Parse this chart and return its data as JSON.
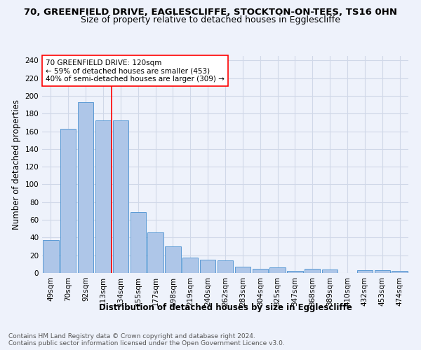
{
  "title1": "70, GREENFIELD DRIVE, EAGLESCLIFFE, STOCKTON-ON-TEES, TS16 0HN",
  "title2": "Size of property relative to detached houses in Egglescliffe",
  "xlabel": "Distribution of detached houses by size in Egglescliffe",
  "ylabel": "Number of detached properties",
  "categories": [
    "49sqm",
    "70sqm",
    "92sqm",
    "113sqm",
    "134sqm",
    "155sqm",
    "177sqm",
    "198sqm",
    "219sqm",
    "240sqm",
    "262sqm",
    "283sqm",
    "304sqm",
    "325sqm",
    "347sqm",
    "368sqm",
    "389sqm",
    "410sqm",
    "432sqm",
    "453sqm",
    "474sqm"
  ],
  "values": [
    37,
    163,
    193,
    172,
    172,
    69,
    46,
    30,
    17,
    15,
    14,
    7,
    5,
    6,
    2,
    5,
    4,
    0,
    3,
    3,
    2
  ],
  "bar_color": "#aec6e8",
  "bar_edge_color": "#5b9bd5",
  "grid_color": "#d0d8e8",
  "background_color": "#eef2fb",
  "vline_x": 3.5,
  "vline_color": "red",
  "annotation_text": "70 GREENFIELD DRIVE: 120sqm\n← 59% of detached houses are smaller (453)\n40% of semi-detached houses are larger (309) →",
  "annotation_box_color": "white",
  "annotation_box_edge_color": "red",
  "ylim": [
    0,
    245
  ],
  "yticks": [
    0,
    20,
    40,
    60,
    80,
    100,
    120,
    140,
    160,
    180,
    200,
    220,
    240
  ],
  "footer": "Contains HM Land Registry data © Crown copyright and database right 2024.\nContains public sector information licensed under the Open Government Licence v3.0.",
  "title_fontsize": 9.5,
  "subtitle_fontsize": 9,
  "axis_label_fontsize": 8.5,
  "tick_fontsize": 7.5,
  "annotation_fontsize": 7.5,
  "footer_fontsize": 6.5
}
